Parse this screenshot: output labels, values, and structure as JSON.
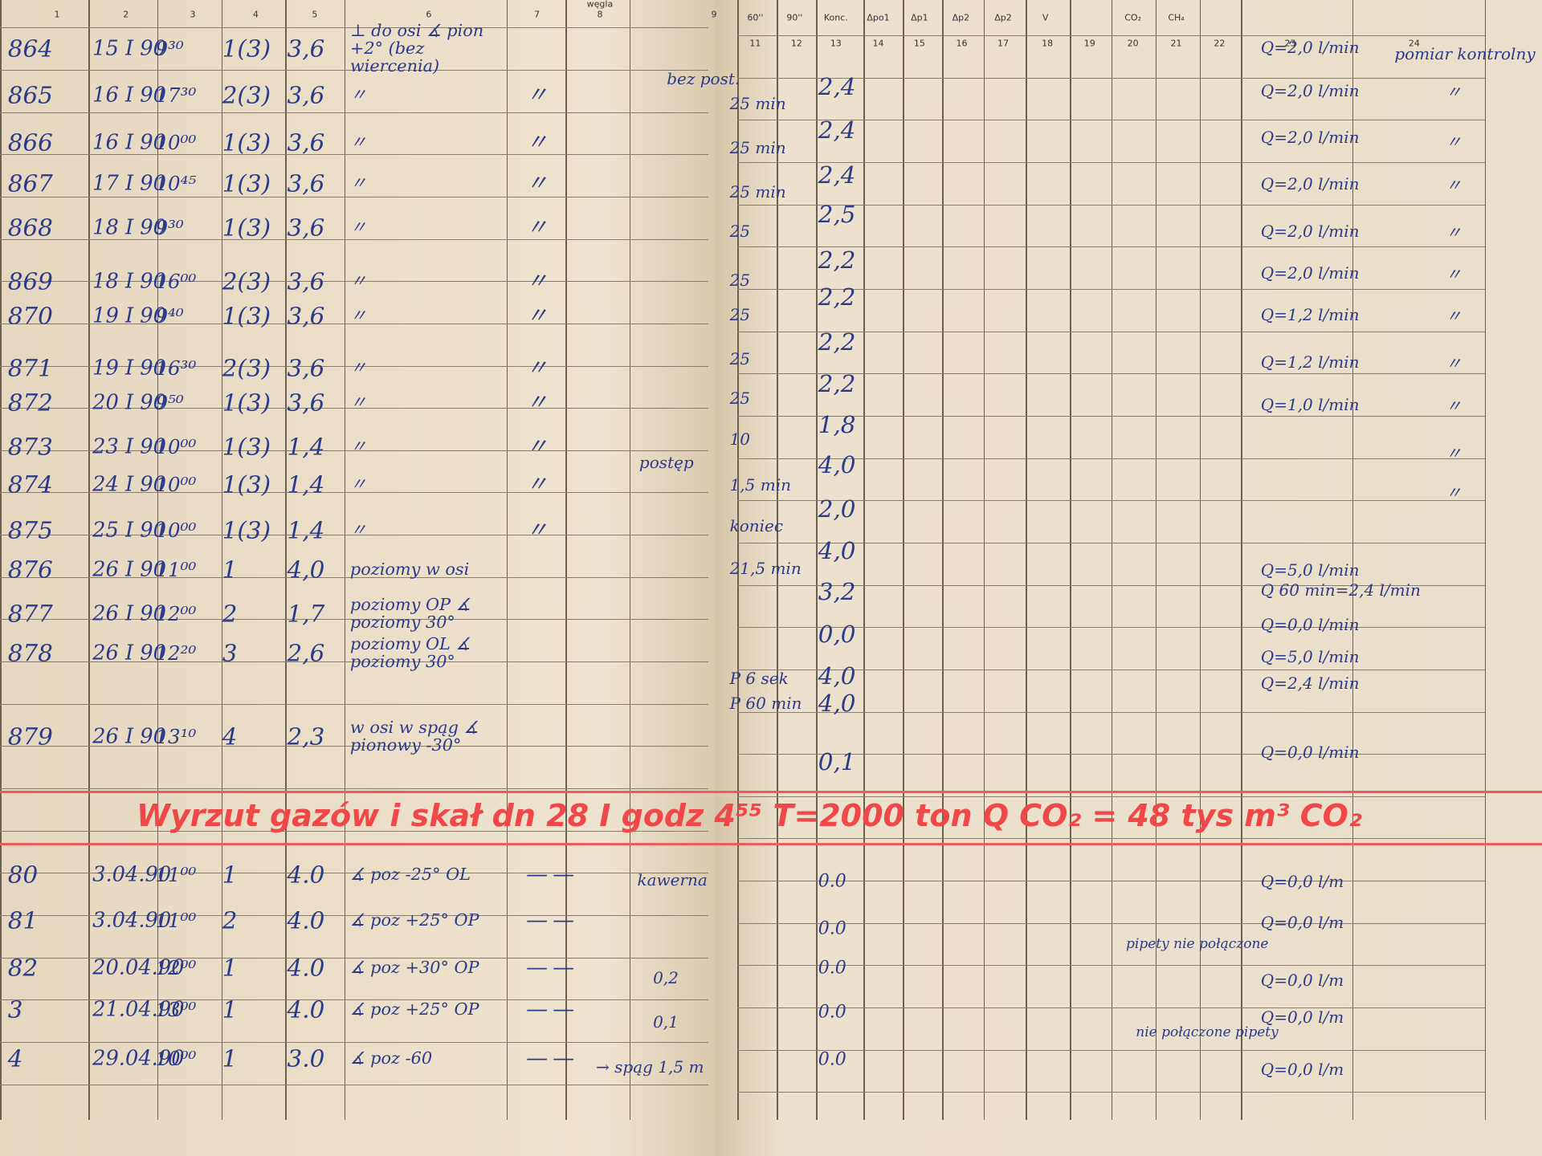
{
  "left_page": {
    "header_fragment": "węgla",
    "column_numbers": [
      "1",
      "2",
      "3",
      "4",
      "5",
      "6",
      "7",
      "8",
      "9"
    ],
    "rows": [
      {
        "no": "864",
        "date": "15 I 90",
        "time": "9³⁰",
        "hole": "1(3)",
        "depth": "3,6",
        "angle": "⊥ do osi ∡ pion +2° (bez wiercenia)"
      },
      {
        "no": "865",
        "date": "16 I 90",
        "time": "17³⁰",
        "hole": "2(3)",
        "depth": "3,6",
        "angle": "〃",
        "mark7": "〃"
      },
      {
        "no": "866",
        "date": "16 I 90",
        "time": "10⁰⁰",
        "hole": "1(3)",
        "depth": "3,6",
        "angle": "〃",
        "mark7": "〃"
      },
      {
        "no": "867",
        "date": "17 I 90",
        "time": "10⁴⁵",
        "hole": "1(3)",
        "depth": "3,6",
        "angle": "〃",
        "mark7": "〃"
      },
      {
        "no": "868",
        "date": "18 I 90",
        "time": "9³⁰",
        "hole": "1(3)",
        "depth": "3,6",
        "angle": "〃",
        "mark7": "〃"
      },
      {
        "no": "869",
        "date": "18 I 90",
        "time": "16⁰⁰",
        "hole": "2(3)",
        "depth": "3,6",
        "angle": "〃",
        "mark7": "〃"
      },
      {
        "no": "870",
        "date": "19 I 90",
        "time": "9⁴⁰",
        "hole": "1(3)",
        "depth": "3,6",
        "angle": "〃",
        "mark7": "〃"
      },
      {
        "no": "871",
        "date": "19 I 90",
        "time": "16³⁰",
        "hole": "2(3)",
        "depth": "3,6",
        "angle": "〃",
        "mark7": "〃"
      },
      {
        "no": "872",
        "date": "20 I 90",
        "time": "9⁵⁰",
        "hole": "1(3)",
        "depth": "3,6",
        "angle": "〃",
        "mark7": "〃"
      },
      {
        "no": "873",
        "date": "23 I 90",
        "time": "10⁰⁰",
        "hole": "1(3)",
        "depth": "1,4",
        "angle": "〃",
        "mark7": "〃"
      },
      {
        "no": "874",
        "date": "24 I 90",
        "time": "10⁰⁰",
        "hole": "1(3)",
        "depth": "1,4",
        "angle": "〃",
        "mark7": "〃"
      },
      {
        "no": "875",
        "date": "25 I 90",
        "time": "10⁰⁰",
        "hole": "1(3)",
        "depth": "1,4",
        "angle": "〃",
        "mark7": "〃"
      },
      {
        "no": "876",
        "date": "26 I 90",
        "time": "11⁰⁰",
        "hole": "1",
        "depth": "4,0",
        "angle": "poziomy w osi"
      },
      {
        "no": "877",
        "date": "26 I 90",
        "time": "12⁰⁰",
        "hole": "2",
        "depth": "1,7",
        "angle": "poziomy OP ∡ poziomy 30°"
      },
      {
        "no": "878",
        "date": "26 I 90",
        "time": "12²⁰",
        "hole": "3",
        "depth": "2,6",
        "angle": "poziomy OL ∡ poziomy 30°"
      },
      {
        "no": "879",
        "date": "26 I 90",
        "time": "13¹⁰",
        "hole": "4",
        "depth": "2,3",
        "angle": "w osi w spąg ∡ pionowy -30°"
      },
      {
        "no": "80",
        "date": "3.04.90",
        "time": "11⁰⁰",
        "hole": "1",
        "depth": "4.0",
        "angle": "∡ poz -25° OL",
        "mark7": "—",
        "mark8": "—"
      },
      {
        "no": "81",
        "date": "3.04.90",
        "time": "11⁰⁰",
        "hole": "2",
        "depth": "4.0",
        "angle": "∡ poz +25° OP",
        "mark7": "—",
        "mark8": "—"
      },
      {
        "no": "82",
        "date": "20.04.90",
        "time": "12⁰⁰",
        "hole": "1",
        "depth": "4.0",
        "angle": "∡ poz +30° OP",
        "mark7": "—",
        "mark8": "—"
      },
      {
        "no": "3",
        "date": "21.04.90",
        "time": "13⁰⁰",
        "hole": "1",
        "depth": "4.0",
        "angle": "∡ poz +25° OP",
        "mark7": "—",
        "mark8": "—"
      },
      {
        "no": "4",
        "date": "29.04.90",
        "time": "10⁰⁰",
        "hole": "1",
        "depth": "3.0",
        "angle": "∡ poz -60",
        "mark7": "—",
        "mark8": "—"
      }
    ],
    "margin_notes": [
      "bez post.",
      "postęp",
      "kawerna",
      "0,2",
      "0,1",
      "→ spąg 1,5 m"
    ]
  },
  "right_page": {
    "header_labels": [
      "60''",
      "90''",
      "Konc.",
      "Δpo1",
      "Δp1",
      "Δp2",
      "Δp2",
      "V",
      "CO₂",
      "CH₄"
    ],
    "column_numbers": [
      "11",
      "12",
      "13",
      "14",
      "15",
      "16",
      "17",
      "18",
      "19",
      "20",
      "21",
      "22",
      "23",
      "24"
    ],
    "time_notes": [
      "25 min",
      "25 min",
      "25 min",
      "25",
      "25",
      "25",
      "25",
      "25",
      "10",
      "1,5 min",
      "koniec",
      "21,5 min",
      "P 6 sek",
      "P 60 min"
    ],
    "concentration": [
      "2,4",
      "2,4",
      "2,4",
      "2,5",
      "2,2",
      "2,2",
      "2,2",
      "2,2",
      "1,8",
      "4,0",
      "2,0",
      "4,0",
      "3,2",
      "0,0",
      "4,0",
      "4,0",
      "0,1",
      "0.0",
      "0.0",
      "0.0",
      "0.0",
      "0.0"
    ],
    "flow": [
      "Q=2,0 l/min",
      "Q=2,0 l/min",
      "Q=2,0 l/min",
      "Q=2,0 l/min",
      "Q=2,0 l/min",
      "Q=2,0 l/min",
      "Q=1,2 l/min",
      "Q=1,2 l/min",
      "Q=1,0 l/min",
      "Q=5,0 l/min",
      "Q 60 min=2,4 l/min",
      "Q=0,0 l/min",
      "Q=5,0 l/min",
      "Q=2,4 l/min",
      "Q=0,0 l/min",
      "Q=0,0 l/m",
      "Q=0,0 l/m",
      "Q=0,0 l/m",
      "Q=0,0 l/m",
      "Q=0,0 l/m"
    ],
    "remarks": [
      "pomiar kontrolny",
      "〃",
      "〃",
      "〃",
      "〃",
      "〃",
      "〃",
      "〃",
      "〃",
      "〃",
      "〃"
    ],
    "side_notes": [
      "pipety nie połączone",
      "nie połączone pipety"
    ]
  },
  "annotation": "Wyrzut gazów i skał dn 28 I godz 4⁵⁵   T=2000 ton   Q CO₂ = 48 tys m³ CO₂"
}
